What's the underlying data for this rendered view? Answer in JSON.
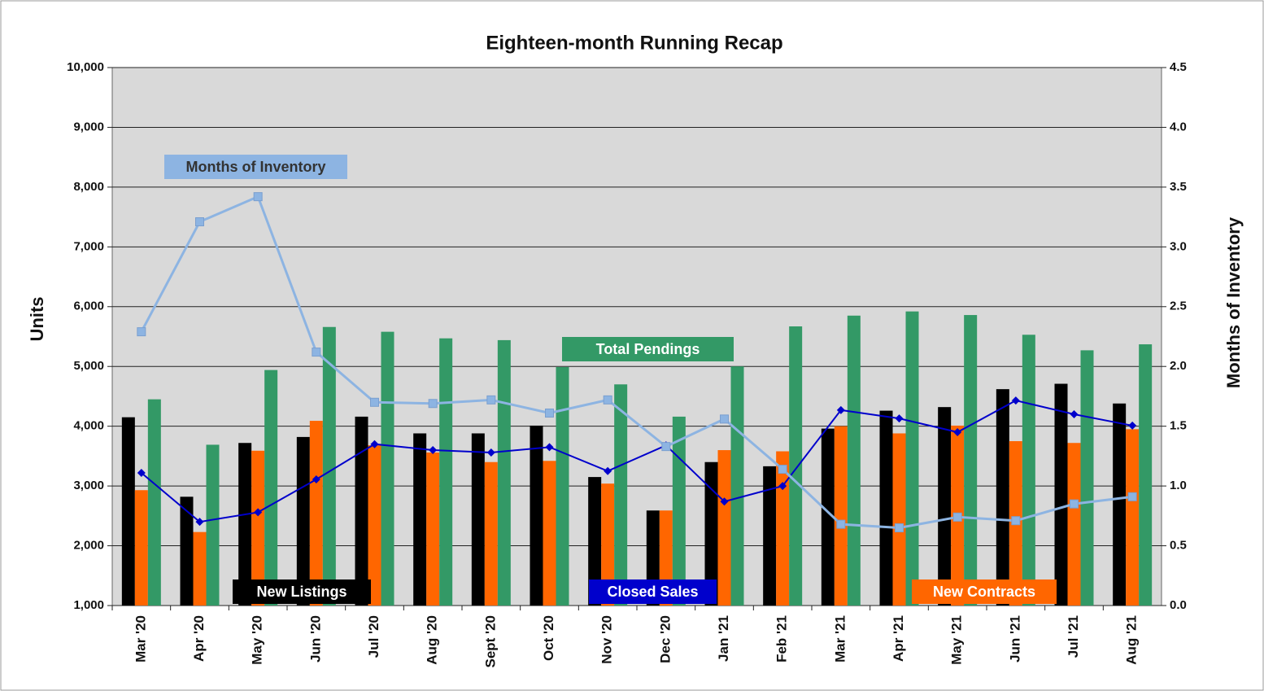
{
  "chart_data": {
    "type": "bar",
    "title": "Eighteen-month Running Recap",
    "y_label": "Units",
    "y2_label": "Months of Inventory",
    "categories": [
      "Mar '20",
      "Apr '20",
      "May '20",
      "Jun '20",
      "Jul '20",
      "Aug '20",
      "Sept '20",
      "Oct '20",
      "Nov '20",
      "Dec '20",
      "Jan '21",
      "Feb '21",
      "Mar '21",
      "Apr '21",
      "May '21",
      "Jun '21",
      "Jul '21",
      "Aug '21"
    ],
    "ylim": [
      1000,
      10000
    ],
    "yticks": [
      {
        "value": 1000,
        "label": "1,000"
      },
      {
        "value": 2000,
        "label": "2,000"
      },
      {
        "value": 3000,
        "label": "3,000"
      },
      {
        "value": 4000,
        "label": "4,000"
      },
      {
        "value": 5000,
        "label": "5,000"
      },
      {
        "value": 6000,
        "label": "6,000"
      },
      {
        "value": 7000,
        "label": "7,000"
      },
      {
        "value": 8000,
        "label": "8,000"
      },
      {
        "value": 9000,
        "label": "9,000"
      },
      {
        "value": 10000,
        "label": "10,000"
      }
    ],
    "y2lim": [
      0,
      4.5
    ],
    "y2ticks": [
      {
        "value": 0,
        "label": "0.0"
      },
      {
        "value": 0.5,
        "label": "0.5"
      },
      {
        "value": 1,
        "label": "1.0"
      },
      {
        "value": 1.5,
        "label": "1.5"
      },
      {
        "value": 2,
        "label": "2.0"
      },
      {
        "value": 2.5,
        "label": "2.5"
      },
      {
        "value": 3,
        "label": "3.0"
      },
      {
        "value": 3.5,
        "label": "3.5"
      },
      {
        "value": 4,
        "label": "4.0"
      },
      {
        "value": 4.5,
        "label": "4.5"
      }
    ],
    "grid": true,
    "series": [
      {
        "name": "New Listings",
        "type": "bar",
        "color": "#000000",
        "values": [
          4150,
          2820,
          3720,
          3820,
          4160,
          3880,
          3880,
          4010,
          3150,
          2590,
          3400,
          3330,
          3960,
          4260,
          4320,
          4620,
          4710,
          4380
        ]
      },
      {
        "name": "New Contracts",
        "type": "bar",
        "color": "#ff6600",
        "values": [
          2930,
          2230,
          3590,
          4090,
          3680,
          3560,
          3400,
          3420,
          3040,
          2590,
          3600,
          3580,
          4000,
          3880,
          4010,
          3750,
          3720,
          3950
        ]
      },
      {
        "name": "Total Pendings",
        "type": "bar",
        "color": "#339966",
        "values": [
          4450,
          3690,
          4940,
          5660,
          5580,
          5470,
          5440,
          4990,
          4700,
          4160,
          5000,
          5670,
          5850,
          5920,
          5860,
          5530,
          5270,
          5370
        ]
      },
      {
        "name": "Closed Sales",
        "type": "line",
        "color": "#0000cc",
        "values": [
          3220,
          2400,
          2560,
          3110,
          3700,
          3600,
          3560,
          3650,
          3250,
          3680,
          2740,
          3000,
          4270,
          4130,
          3900,
          4430,
          4200,
          4010
        ]
      },
      {
        "name": "Months of Inventory",
        "type": "line",
        "axis": "y2",
        "color": "#8db4e2",
        "values": [
          2.29,
          3.21,
          3.42,
          2.12,
          1.7,
          1.69,
          1.72,
          1.61,
          1.72,
          1.33,
          1.56,
          1.14,
          0.68,
          0.65,
          0.74,
          0.71,
          0.85,
          0.91
        ]
      }
    ]
  }
}
